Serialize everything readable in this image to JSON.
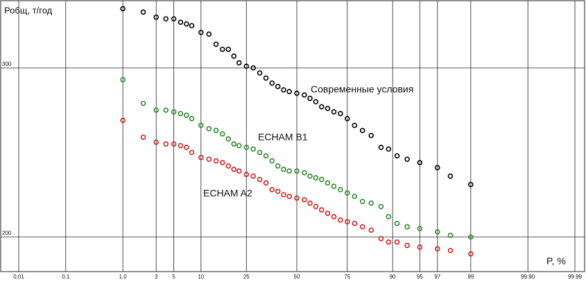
{
  "chart_data": {
    "type": "scatter",
    "x_scale": "probability",
    "ylabel": "Робщ, т/год",
    "xlabel": "P, %",
    "x": [
      1,
      2,
      3,
      4,
      5,
      6,
      7,
      8,
      10,
      12,
      14,
      16,
      18,
      20,
      22,
      25,
      28,
      31,
      34,
      37,
      40,
      43,
      46,
      50,
      54,
      57,
      60,
      63,
      66,
      69,
      72,
      75,
      78,
      81,
      84,
      87,
      89,
      91,
      93,
      95,
      97,
      98,
      99
    ],
    "series": [
      {
        "name": "Современные условия",
        "color": "#000000",
        "values": [
          335,
          333,
          330,
          329,
          329,
          327,
          326,
          325,
          321,
          320,
          314,
          311,
          311,
          307,
          303,
          301,
          300,
          297,
          294,
          291,
          289,
          287,
          286,
          285,
          284,
          282,
          280,
          277,
          276,
          274,
          273,
          270,
          266,
          263,
          260,
          253,
          252,
          248,
          246,
          244,
          241,
          236,
          231
        ]
      },
      {
        "name": "ECHAM B1",
        "color": "#2a8a2a",
        "values": [
          293,
          279,
          275,
          275,
          274,
          273,
          272,
          270,
          266,
          264,
          263,
          261,
          258,
          255,
          254,
          253,
          252,
          250,
          248,
          245,
          242,
          240,
          239,
          239,
          238,
          236,
          235,
          234,
          232,
          230,
          228,
          226,
          224,
          221,
          220,
          218,
          212,
          208,
          206,
          205,
          203,
          201,
          200
        ]
      },
      {
        "name": "ECHAM A2",
        "color": "#cc2222",
        "values": [
          269,
          259,
          256,
          255,
          255,
          254,
          253,
          250,
          247,
          246,
          245,
          244,
          242,
          240,
          239,
          237,
          236,
          234,
          232,
          228,
          227,
          225,
          224,
          223,
          222,
          220,
          218,
          216,
          214,
          212,
          210,
          209,
          208,
          206,
          204,
          199,
          197,
          197,
          195,
          194,
          193,
          192,
          190
        ]
      }
    ],
    "xlim": [
      0.01,
      99.99
    ],
    "xticks": [
      0.01,
      0.1,
      {
        "value": 1,
        "label": "1.0"
      },
      3,
      5,
      10,
      25,
      50,
      75,
      90,
      95,
      97,
      99,
      {
        "value": 99.9,
        "label": "99.90"
      },
      99.99
    ],
    "ylim": [
      180,
      340
    ],
    "yticks": [
      200,
      300
    ],
    "grid": true
  }
}
